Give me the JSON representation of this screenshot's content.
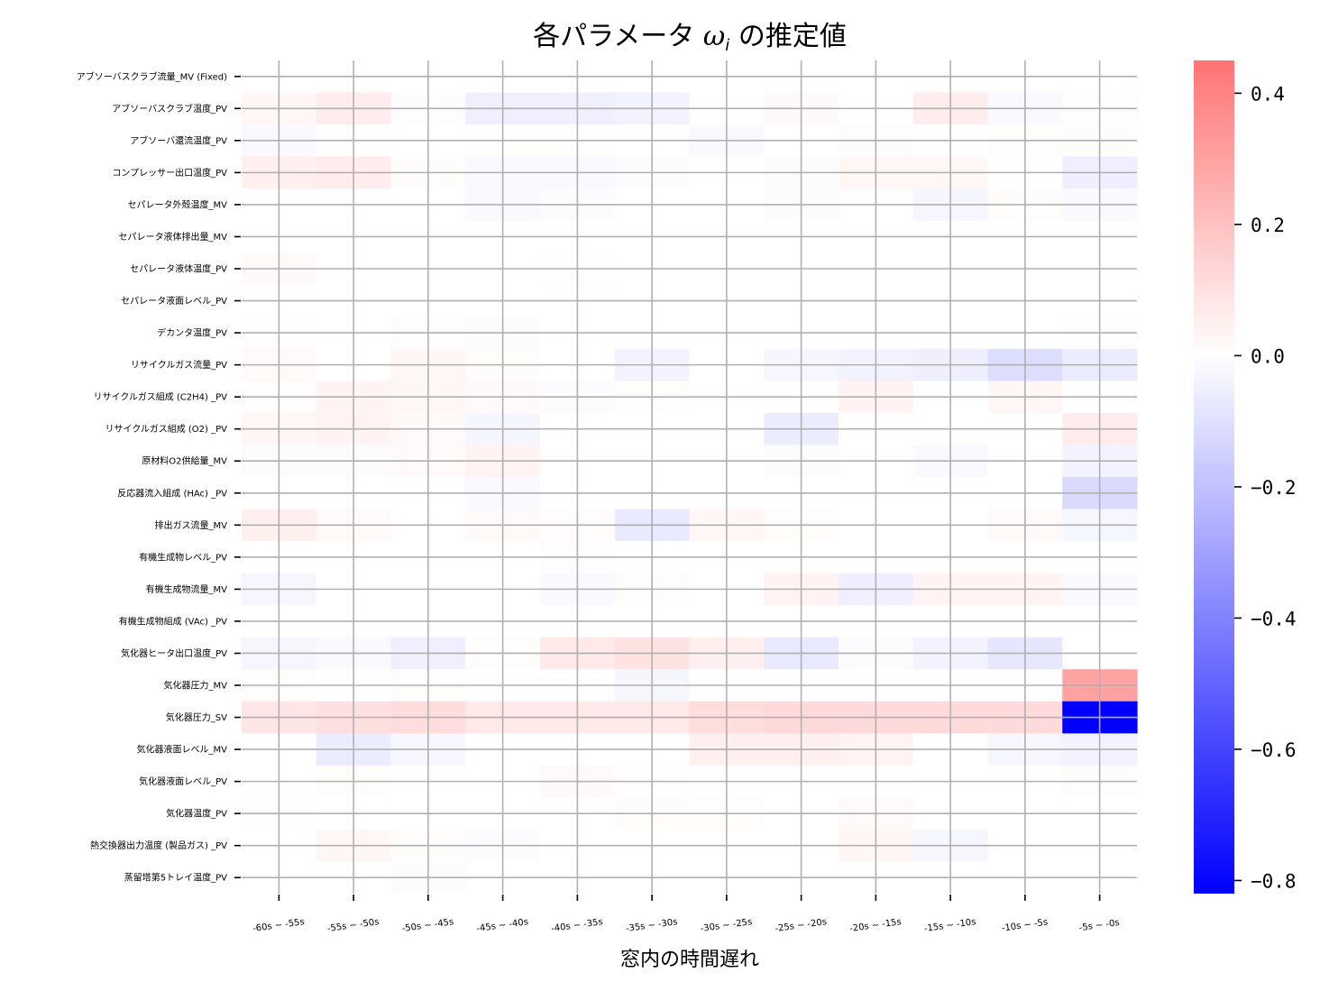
{
  "chart_data": {
    "type": "heatmap",
    "title": "各パラメータ ωi の推定値",
    "title_main": "各パラメータ ",
    "title_symbol": "ω",
    "title_subscript": "i",
    "title_tail": " の推定値",
    "xlabel": "窓内の時間遅れ",
    "ylabel": "",
    "grid": true,
    "colormap": "bwr",
    "vmin": -0.82,
    "vmax": 0.45,
    "colorbar_ticks": [
      0.4,
      0.2,
      0.0,
      -0.2,
      -0.4,
      -0.6,
      -0.8
    ],
    "colorbar_tick_labels": [
      "0.4",
      "0.2",
      "0.0",
      "−0.2",
      "−0.4",
      "−0.6",
      "−0.8"
    ],
    "x_categories": [
      "-60s ~ -55s",
      "-55s ~ -50s",
      "-50s ~ -45s",
      "-45s ~ -40s",
      "-40s ~ -35s",
      "-35s ~ -30s",
      "-30s ~ -25s",
      "-25s ~ -20s",
      "-20s ~ -15s",
      "-15s ~ -10s",
      "-10s ~ -5s",
      "-5s ~ -0s"
    ],
    "y_categories": [
      "アブソーバスクラブ流量_MV (Fixed)",
      "アブソーバスクラブ温度_PV",
      "アブソーバ還流温度_PV",
      "コンプレッサー出口温度_PV",
      "セパレータ外殻温度_MV",
      "セパレータ液体排出量_MV",
      "セパレータ液体温度_PV",
      "セパレータ液面レベル_PV",
      "デカンタ温度_PV",
      "リサイクルガス流量_PV",
      "リサイクルガス組成 (C2H4) _PV",
      "リサイクルガス組成 (O2) _PV",
      "原材料O2供給量_MV",
      "反応器流入組成 (HAc) _PV",
      "排出ガス流量_MV",
      "有機生成物レベル_PV",
      "有機生成物流量_MV",
      "有機生成物組成 (VAc) _PV",
      "気化器ヒータ出口温度_PV",
      "気化器圧力_MV",
      "気化器圧力_SV",
      "気化器液面レベル_MV",
      "気化器液面レベル_PV",
      "気化器温度_PV",
      "熱交換器出力温度 (製品ガス) _PV",
      "蒸留塔第5トレイ温度_PV"
    ],
    "values": [
      [
        0.0,
        0.0,
        0.0,
        0.0,
        0.0,
        0.0,
        0.0,
        0.0,
        0.0,
        0.0,
        0.0,
        0.0
      ],
      [
        0.03,
        0.06,
        -0.005,
        -0.05,
        -0.05,
        -0.04,
        0.0,
        0.02,
        0.0,
        0.06,
        -0.02,
        0.005
      ],
      [
        -0.02,
        0.0,
        0.0,
        0.0,
        0.0,
        0.0,
        -0.02,
        0.0,
        -0.005,
        0.0,
        0.01,
        0.01
      ],
      [
        0.05,
        0.06,
        0.01,
        -0.02,
        -0.02,
        -0.01,
        0.0,
        -0.01,
        0.03,
        0.03,
        0.0,
        -0.05
      ],
      [
        0.0,
        0.0,
        0.0,
        -0.02,
        -0.01,
        0.0,
        0.0,
        -0.01,
        0.0,
        -0.03,
        0.01,
        -0.02
      ],
      [
        0.0,
        0.0,
        0.0,
        0.0,
        0.0,
        0.0,
        0.0,
        0.0,
        0.0,
        0.0,
        0.0,
        0.0
      ],
      [
        0.015,
        0.0,
        0.0,
        0.0,
        0.005,
        0.0,
        0.0,
        0.0,
        0.0,
        0.0,
        0.0,
        0.0
      ],
      [
        0.0,
        0.0,
        0.0,
        0.0,
        0.0,
        0.0,
        0.0,
        0.0,
        0.0,
        0.0,
        0.0,
        0.0
      ],
      [
        0.005,
        0.0,
        -0.005,
        -0.01,
        0.0,
        0.0,
        0.0,
        0.0,
        0.0,
        0.0,
        0.0,
        -0.005
      ],
      [
        0.015,
        0.0,
        0.03,
        0.01,
        0.0,
        -0.04,
        0.0,
        -0.03,
        -0.04,
        -0.05,
        -0.11,
        -0.06
      ],
      [
        0.005,
        0.04,
        0.03,
        0.02,
        -0.01,
        0.01,
        0.0,
        0.0,
        0.04,
        0.0,
        0.03,
        0.0
      ],
      [
        0.03,
        0.04,
        0.02,
        -0.03,
        0.0,
        0.0,
        0.0,
        -0.06,
        0.0,
        0.0,
        0.0,
        0.06
      ],
      [
        -0.01,
        -0.01,
        0.02,
        0.04,
        0.0,
        0.0,
        0.0,
        -0.01,
        0.0,
        -0.02,
        0.0,
        -0.04
      ],
      [
        0.0,
        0.0,
        0.0,
        -0.02,
        0.0,
        0.0,
        0.0,
        0.0,
        0.0,
        0.0,
        0.0,
        -0.12
      ],
      [
        0.05,
        0.02,
        0.0,
        0.015,
        0.01,
        -0.07,
        0.03,
        0.01,
        0.0,
        0.0,
        0.02,
        -0.03
      ],
      [
        0.0,
        0.0,
        0.0,
        0.0,
        -0.005,
        0.0,
        0.0,
        0.0,
        0.0,
        0.0,
        0.0,
        0.0
      ],
      [
        -0.03,
        0.0,
        0.0,
        0.0,
        -0.02,
        0.01,
        0.0,
        0.04,
        -0.05,
        0.04,
        0.04,
        -0.02
      ],
      [
        0.0,
        0.0,
        0.0,
        0.0,
        0.0,
        0.0,
        0.0,
        0.0,
        0.0,
        0.0,
        0.0,
        0.0
      ],
      [
        -0.03,
        -0.02,
        -0.05,
        0.01,
        0.07,
        0.09,
        0.05,
        -0.07,
        -0.01,
        -0.04,
        -0.08,
        0.0
      ],
      [
        0.01,
        0.0,
        0.01,
        0.0,
        0.0,
        -0.03,
        0.0,
        0.0,
        0.0,
        0.0,
        0.0,
        0.3
      ],
      [
        0.08,
        0.1,
        0.11,
        0.07,
        0.07,
        0.07,
        0.11,
        0.12,
        0.12,
        0.12,
        0.12,
        -0.82
      ],
      [
        0.0,
        -0.06,
        -0.03,
        0.0,
        0.0,
        0.0,
        0.05,
        0.05,
        0.04,
        0.0,
        -0.03,
        -0.04
      ],
      [
        0.0,
        0.01,
        0.0,
        0.0,
        0.02,
        0.005,
        0.0,
        0.0,
        0.0,
        0.0,
        0.0,
        0.01
      ],
      [
        0.005,
        0.0,
        0.0,
        0.0,
        0.0,
        0.01,
        0.01,
        0.0,
        0.02,
        0.0,
        0.0,
        0.0
      ],
      [
        0.0,
        0.03,
        0.01,
        -0.01,
        0.0,
        0.0,
        0.0,
        0.0,
        0.03,
        -0.03,
        0.0,
        0.0
      ],
      [
        0.0,
        0.0,
        -0.01,
        0.0,
        0.0,
        0.0,
        0.0,
        0.0,
        0.0,
        0.0,
        0.0,
        0.0
      ]
    ]
  }
}
